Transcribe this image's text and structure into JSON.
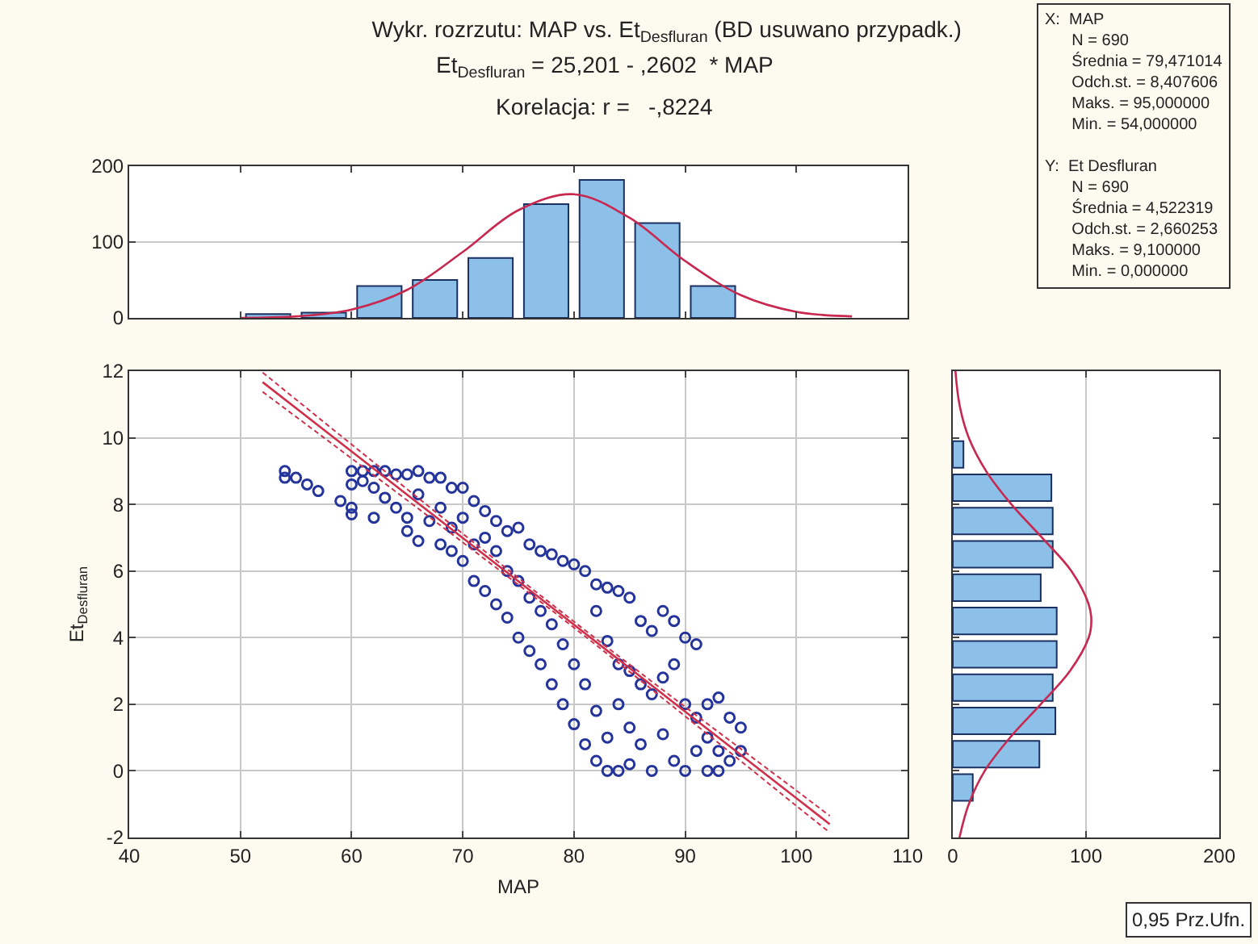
{
  "chart_data": [
    {
      "type": "histogram",
      "title": "Wykr. rozrzutu: MAP vs. Et$_{Desfluran}$ (BD usuwano przypadk.)",
      "subtitle": "Et$_{Desfluran}$ = 25,201 - ,2602  * MAP",
      "annotations": [
        "Korelacja: r =   -,8224",
        "X:  MAP\n      N = 690\n      Średnia = 79,471014\n      Odch.st. = 8,407606\n      Maks. = 95,000000\n      Min. = 54,000000\n\nY:  Et Desfluran\n      N = 690\n      Średnia = 4,522319\n      Odch.st. = 2,660253\n      Maks. = 9,100000\n      Min. = 0,000000"
      ],
      "bins": [
        50,
        55,
        60,
        65,
        70,
        75,
        80,
        85,
        90,
        95
      ],
      "values": [
        5,
        7,
        42,
        50,
        79,
        150,
        182,
        125,
        42
      ],
      "color": "#8dc0e8",
      "series": [
        {
          "type": "line",
          "color": "#c8284f",
          "x": [
            50,
            55,
            60,
            65,
            70,
            75,
            80,
            85,
            90,
            95,
            100,
            105
          ],
          "values": [
            0,
            2,
            11,
            37,
            87,
            142,
            163,
            132,
            75,
            30,
            8,
            2
          ]
        }
      ],
      "xlim": [
        40,
        110
      ],
      "xticks": [
        40,
        50,
        60,
        70,
        80,
        90,
        100,
        110
      ],
      "ylim": [
        0,
        200
      ],
      "yticks": [
        0,
        100,
        200
      ],
      "grid": "y",
      "tick_labels": "y"
    },
    {
      "type": "scatter",
      "xlabel": "MAP",
      "ylabel": "Et$_{Desfluran}$",
      "series": [
        {
          "type": "scatter",
          "color": "#24349a",
          "marker": "circle",
          "x": [
            54,
            54,
            55,
            56,
            57,
            59,
            60,
            60,
            62,
            60,
            60,
            61,
            61,
            62,
            62,
            63,
            63,
            64,
            64,
            65,
            65,
            65,
            66,
            66,
            66,
            67,
            67,
            68,
            68,
            68,
            69,
            69,
            69,
            70,
            70,
            70,
            71,
            71,
            71,
            72,
            72,
            72,
            73,
            73,
            73,
            74,
            74,
            74,
            75,
            75,
            75,
            76,
            76,
            76,
            77,
            77,
            77,
            78,
            78,
            78,
            79,
            79,
            79,
            80,
            80,
            80,
            81,
            81,
            81,
            82,
            82,
            82,
            82,
            83,
            83,
            83,
            83,
            84,
            84,
            84,
            84,
            85,
            85,
            85,
            85,
            86,
            86,
            86,
            87,
            87,
            87,
            88,
            88,
            88,
            89,
            89,
            89,
            90,
            90,
            90,
            91,
            91,
            91,
            92,
            92,
            92,
            93,
            93,
            93,
            94,
            94,
            95,
            95
          ],
          "values": [
            9.0,
            8.8,
            8.8,
            8.6,
            8.4,
            8.1,
            7.9,
            7.7,
            7.6,
            9.0,
            8.6,
            9.0,
            8.7,
            9.0,
            8.5,
            9.0,
            8.2,
            8.9,
            7.9,
            8.9,
            7.6,
            7.2,
            9.0,
            8.3,
            6.9,
            8.8,
            7.5,
            8.8,
            7.9,
            6.8,
            8.5,
            7.3,
            6.6,
            8.5,
            7.6,
            6.3,
            8.1,
            6.8,
            5.7,
            7.8,
            7.0,
            5.4,
            7.5,
            6.6,
            5.0,
            7.2,
            6.0,
            4.6,
            7.3,
            5.7,
            4.0,
            6.8,
            5.2,
            3.6,
            6.6,
            4.8,
            3.2,
            6.5,
            4.4,
            2.6,
            6.3,
            3.8,
            2.0,
            6.2,
            3.2,
            1.4,
            6.0,
            2.6,
            0.8,
            5.6,
            4.8,
            1.8,
            0.3,
            5.5,
            3.9,
            1.0,
            0.0,
            5.4,
            3.2,
            2.0,
            0.0,
            5.2,
            3.0,
            1.3,
            0.2,
            4.5,
            2.6,
            0.8,
            4.2,
            2.3,
            0.0,
            4.8,
            2.8,
            1.1,
            4.5,
            3.2,
            0.3,
            4.0,
            2.0,
            0.0,
            3.8,
            1.6,
            0.6,
            2.0,
            1.0,
            0.0,
            2.2,
            0.6,
            0.0,
            1.6,
            0.3,
            1.3,
            0.6
          ]
        },
        {
          "type": "line",
          "color": "#d0304a",
          "marker": "none",
          "line_style": "solid",
          "x": [
            52,
            60,
            70,
            80,
            90,
            100,
            103
          ],
          "values": [
            11.67,
            9.59,
            6.99,
            4.39,
            1.78,
            -0.82,
            -1.6
          ]
        },
        {
          "type": "line",
          "color": "#d0304a",
          "marker": "none",
          "line_style": "dashed",
          "x": [
            52,
            60,
            70,
            80,
            90,
            100,
            103
          ],
          "values": [
            11.38,
            9.38,
            6.86,
            4.3,
            1.64,
            -1.05,
            -1.85
          ]
        },
        {
          "type": "line",
          "color": "#d0304a",
          "marker": "none",
          "line_style": "dashed",
          "x": [
            52,
            60,
            70,
            80,
            90,
            100,
            103
          ],
          "values": [
            11.96,
            9.8,
            7.12,
            4.48,
            1.92,
            -0.59,
            -1.35
          ]
        }
      ],
      "xlim": [
        40,
        110
      ],
      "xticks": [
        40,
        50,
        60,
        70,
        80,
        90,
        100,
        110
      ],
      "ylim": [
        -2,
        12
      ],
      "yticks": [
        -2,
        0,
        2,
        4,
        6,
        8,
        10,
        12
      ],
      "grid": true
    },
    {
      "type": "histogram",
      "orientation": "horizontal",
      "annotations": [
        "0,95 Prz.Ufn."
      ],
      "bins": [
        -1,
        0,
        1,
        2,
        3,
        4,
        5,
        6,
        7,
        8,
        9,
        10
      ],
      "values": [
        15,
        65,
        77,
        75,
        78,
        78,
        66,
        75,
        75,
        74,
        8
      ],
      "color": "#8dc0e8",
      "series": [
        {
          "type": "line",
          "color": "#c8284f",
          "x": [
            -2,
            -1,
            0,
            1,
            2,
            3,
            4,
            4.5,
            5,
            6,
            7,
            8,
            9,
            10,
            11,
            12
          ],
          "values": [
            5,
            12,
            24,
            43,
            66,
            88,
            102,
            104,
            102,
            89,
            67,
            44,
            25,
            12,
            5,
            2
          ]
        }
      ],
      "xlim": [
        0,
        200
      ],
      "xticks": [
        0,
        100,
        200
      ],
      "ylim": [
        -2,
        12
      ],
      "yticks": [
        -2,
        0,
        2,
        4,
        6,
        8,
        10,
        12
      ],
      "grid": "x",
      "tick_labels": "x"
    }
  ]
}
